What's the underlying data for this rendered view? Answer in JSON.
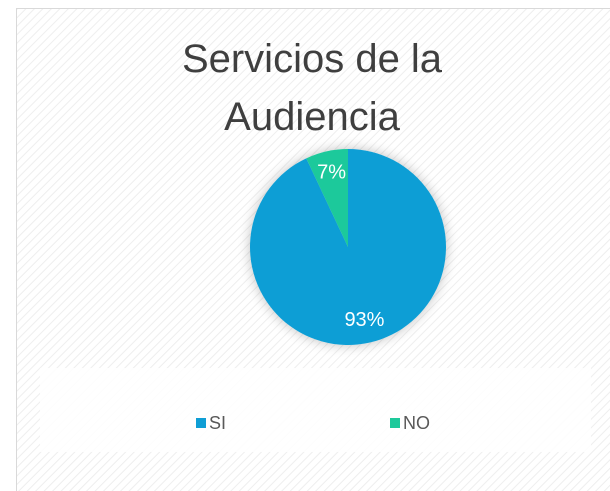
{
  "chart_data": {
    "type": "pie",
    "title": "Servicios de la Audiencia",
    "categories": [
      "SI",
      "NO"
    ],
    "values": [
      93,
      7
    ],
    "value_labels": [
      "93%",
      "7%"
    ],
    "colors": [
      "#0f9ed5",
      "#1ec99b"
    ],
    "legend": "bottom"
  }
}
